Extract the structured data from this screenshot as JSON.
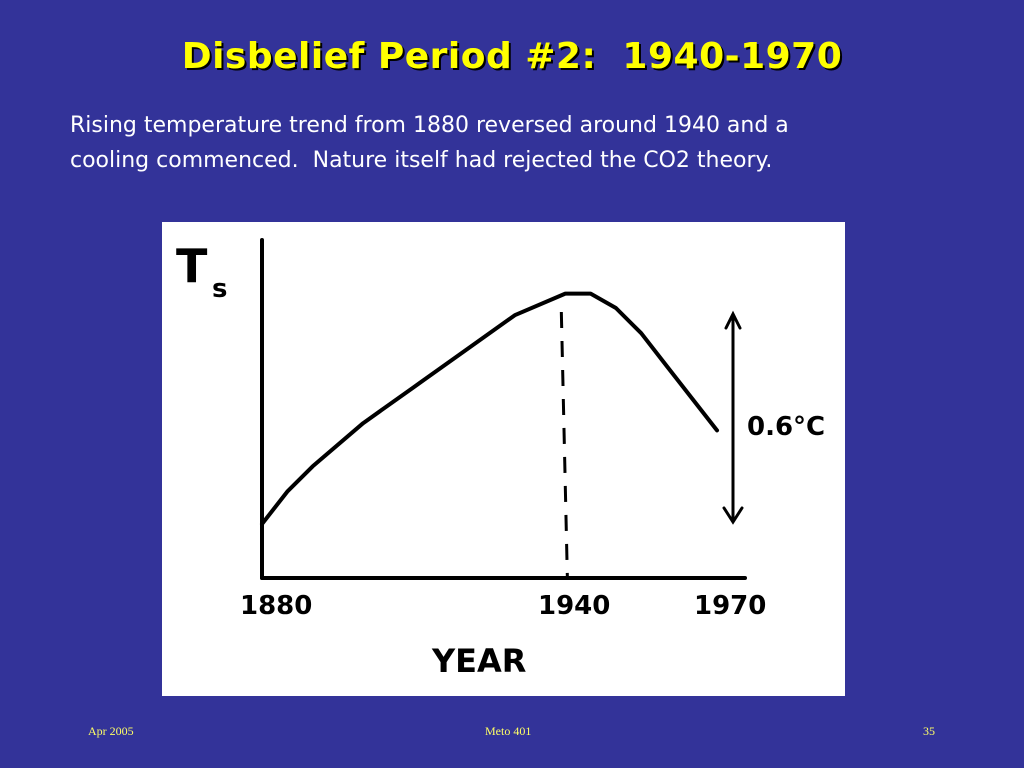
{
  "slide": {
    "title": "Disbelief Period #2:  1940-1970",
    "body": "Rising temperature trend from 1880 reversed around 1940 and a\ncooling commenced.  Nature itself had rejected the CO2 theory."
  },
  "footer": {
    "date": "Apr 2005",
    "course": "Meto 401",
    "page": "35"
  },
  "colors": {
    "background": "#333399",
    "title": "#FFFF00",
    "body_text": "#FFFFFF",
    "footer_text": "#FFFF66",
    "chart_panel": "#FFFFFF",
    "ink": "#000000"
  },
  "chart_data": {
    "type": "line",
    "style": "hand-drawn sketch",
    "ylabel_main": "T",
    "ylabel_sub": "s",
    "xlabel": "YEAR",
    "xticks": [
      "1880",
      "1940",
      "1970"
    ],
    "xlim": [
      1880,
      1970
    ],
    "series": [
      {
        "x": [
          1880,
          1885,
          1890,
          1900,
          1910,
          1920,
          1930,
          1940,
          1945,
          1950,
          1955,
          1960,
          1965,
          1970
        ],
        "y": [
          0.0,
          0.09,
          0.16,
          0.28,
          0.38,
          0.48,
          0.58,
          0.64,
          0.64,
          0.6,
          0.53,
          0.44,
          0.35,
          0.26
        ]
      }
    ],
    "vline": {
      "x": 1940,
      "style": "dashed"
    },
    "range_arrow": {
      "label": "0.6°C",
      "y": [
        0.03,
        0.6
      ]
    }
  }
}
